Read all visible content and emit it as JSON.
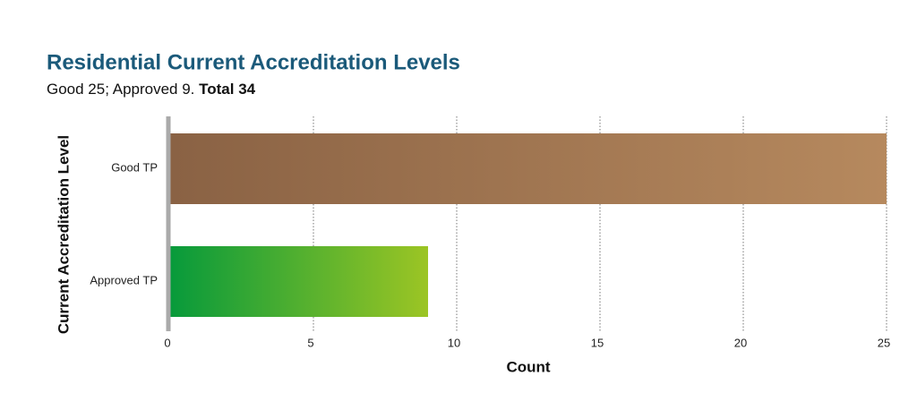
{
  "chart_data": {
    "type": "hbar",
    "title": "Residential Current Accreditation Levels",
    "subtitle": "Good 25; Approved 9.",
    "subtitle_bold": "Total 34",
    "categories": [
      "Good TP",
      "Approved TP"
    ],
    "values": [
      25,
      9
    ],
    "colors": [
      [
        "#8a6244",
        "#b6895e"
      ],
      [
        "#079a3b",
        "#9cc524"
      ]
    ],
    "xlabel": "Count",
    "ylabel": "Current Accreditation Level",
    "xlim": [
      0,
      25
    ],
    "xticks": [
      0,
      5,
      10,
      15,
      20,
      25
    ],
    "grid": true
  }
}
